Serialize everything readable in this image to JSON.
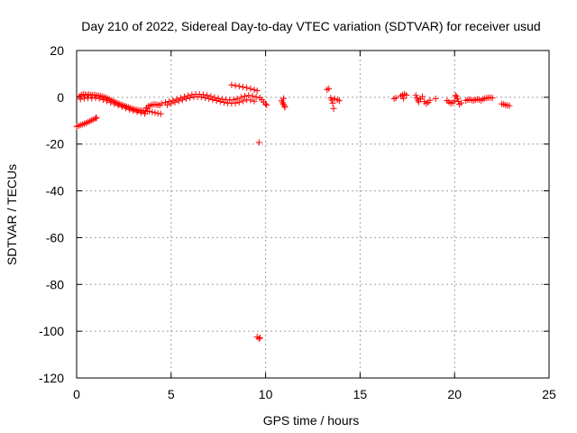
{
  "chart_data": {
    "type": "scatter",
    "title": "Day 210 of 2022, Sidereal Day-to-day VTEC variation (SDTVAR) for receiver usud",
    "xlabel": "GPS time / hours",
    "ylabel": "SDTVAR / TECUs",
    "xlim": [
      0,
      25
    ],
    "ylim": [
      -120,
      20
    ],
    "xticks": [
      0,
      5,
      10,
      15,
      20,
      25
    ],
    "yticks": [
      20,
      0,
      -20,
      -40,
      -60,
      -80,
      -100,
      -120
    ],
    "xtick_labels": [
      "0",
      "5",
      "10",
      "15",
      "20",
      "25"
    ],
    "ytick_labels": [
      "20",
      "0",
      "-20",
      "-40",
      "-60",
      "-80",
      "-100",
      "-120"
    ],
    "grid": true,
    "marker": "+",
    "color": "#ff0000",
    "series": [
      {
        "name": "SDTVAR",
        "points": [
          [
            0.0,
            -12.5
          ],
          [
            0.1,
            -12.2
          ],
          [
            0.2,
            -11.9
          ],
          [
            0.3,
            -11.6
          ],
          [
            0.4,
            -11.3
          ],
          [
            0.5,
            -11.0
          ],
          [
            0.6,
            -10.6
          ],
          [
            0.7,
            -10.2
          ],
          [
            0.8,
            -9.8
          ],
          [
            0.9,
            -9.4
          ],
          [
            1.0,
            -9.0
          ],
          [
            1.05,
            -8.7
          ],
          [
            0.15,
            0.5
          ],
          [
            0.25,
            1.0
          ],
          [
            0.35,
            1.3
          ],
          [
            0.45,
            1.2
          ],
          [
            0.55,
            1.0
          ],
          [
            0.65,
            1.2
          ],
          [
            0.75,
            1.0
          ],
          [
            0.85,
            0.9
          ],
          [
            0.95,
            1.0
          ],
          [
            1.05,
            0.8
          ],
          [
            1.15,
            0.7
          ],
          [
            1.25,
            0.6
          ],
          [
            1.35,
            0.4
          ],
          [
            1.45,
            0.1
          ],
          [
            1.55,
            -0.2
          ],
          [
            1.65,
            -0.5
          ],
          [
            1.75,
            -0.9
          ],
          [
            1.85,
            -1.3
          ],
          [
            1.95,
            -1.7
          ],
          [
            2.05,
            -2.1
          ],
          [
            2.15,
            -2.5
          ],
          [
            2.25,
            -2.8
          ],
          [
            2.35,
            -3.1
          ],
          [
            2.45,
            -3.4
          ],
          [
            2.55,
            -3.7
          ],
          [
            2.65,
            -4.0
          ],
          [
            2.75,
            -4.3
          ],
          [
            2.85,
            -4.6
          ],
          [
            2.95,
            -4.9
          ],
          [
            3.05,
            -5.1
          ],
          [
            3.15,
            -5.3
          ],
          [
            3.25,
            -5.5
          ],
          [
            3.35,
            -5.6
          ],
          [
            3.45,
            -5.7
          ],
          [
            3.55,
            -5.8
          ],
          [
            3.65,
            -5.9
          ],
          [
            3.75,
            -6.0
          ],
          [
            0.2,
            -0.8
          ],
          [
            0.4,
            -0.5
          ],
          [
            0.6,
            -0.3
          ],
          [
            0.8,
            -0.4
          ],
          [
            1.0,
            -0.2
          ],
          [
            1.2,
            -0.5
          ],
          [
            1.4,
            -1.0
          ],
          [
            1.6,
            -1.6
          ],
          [
            1.8,
            -2.2
          ],
          [
            2.0,
            -2.8
          ],
          [
            2.2,
            -3.4
          ],
          [
            2.4,
            -4.0
          ],
          [
            2.6,
            -4.6
          ],
          [
            2.8,
            -5.2
          ],
          [
            3.0,
            -5.7
          ],
          [
            3.2,
            -6.2
          ],
          [
            3.4,
            -6.6
          ],
          [
            3.6,
            -7.0
          ],
          [
            3.7,
            -4.5
          ],
          [
            3.8,
            -3.8
          ],
          [
            3.9,
            -3.5
          ],
          [
            4.0,
            -3.2
          ],
          [
            4.1,
            -3.0
          ],
          [
            4.2,
            -3.1
          ],
          [
            4.3,
            -3.3
          ],
          [
            4.4,
            -3.4
          ],
          [
            3.85,
            -6.0
          ],
          [
            4.0,
            -6.3
          ],
          [
            4.15,
            -6.6
          ],
          [
            4.3,
            -6.9
          ],
          [
            4.45,
            -7.1
          ],
          [
            4.5,
            -2.7
          ],
          [
            4.7,
            -2.2
          ],
          [
            4.9,
            -1.8
          ],
          [
            5.1,
            -1.3
          ],
          [
            5.3,
            -0.8
          ],
          [
            5.5,
            -0.3
          ],
          [
            5.7,
            0.2
          ],
          [
            5.9,
            0.7
          ],
          [
            6.1,
            1.1
          ],
          [
            6.3,
            1.3
          ],
          [
            6.5,
            1.3
          ],
          [
            6.7,
            1.1
          ],
          [
            6.9,
            0.8
          ],
          [
            7.1,
            0.4
          ],
          [
            7.3,
            -0.1
          ],
          [
            7.5,
            -0.5
          ],
          [
            7.7,
            -0.8
          ],
          [
            7.9,
            -1.0
          ],
          [
            8.1,
            -1.1
          ],
          [
            8.3,
            -1.0
          ],
          [
            8.5,
            -0.6
          ],
          [
            8.7,
            0.0
          ],
          [
            8.9,
            0.5
          ],
          [
            9.1,
            0.8
          ],
          [
            9.3,
            0.6
          ],
          [
            9.5,
            0.1
          ],
          [
            4.8,
            -3.3
          ],
          [
            5.0,
            -2.7
          ],
          [
            5.2,
            -2.1
          ],
          [
            5.4,
            -1.6
          ],
          [
            5.6,
            -1.1
          ],
          [
            5.8,
            -0.6
          ],
          [
            6.0,
            -0.2
          ],
          [
            6.2,
            0.1
          ],
          [
            6.4,
            0.2
          ],
          [
            6.6,
            0.1
          ],
          [
            6.8,
            -0.2
          ],
          [
            7.0,
            -0.6
          ],
          [
            7.2,
            -1.0
          ],
          [
            7.4,
            -1.4
          ],
          [
            7.6,
            -1.8
          ],
          [
            7.8,
            -2.2
          ],
          [
            8.0,
            -2.5
          ],
          [
            8.2,
            -2.6
          ],
          [
            8.4,
            -2.5
          ],
          [
            8.6,
            -2.1
          ],
          [
            8.8,
            -1.6
          ],
          [
            9.0,
            -1.1
          ],
          [
            9.2,
            -1.2
          ],
          [
            9.4,
            -1.7
          ],
          [
            8.2,
            5.3
          ],
          [
            8.4,
            5.0
          ],
          [
            8.6,
            4.7
          ],
          [
            8.8,
            4.4
          ],
          [
            9.0,
            4.1
          ],
          [
            9.2,
            3.7
          ],
          [
            9.4,
            3.2
          ],
          [
            9.55,
            2.8
          ],
          [
            9.7,
            -0.2
          ],
          [
            9.8,
            -1.0
          ],
          [
            9.9,
            -2.0
          ],
          [
            10.0,
            -2.8
          ],
          [
            10.05,
            -3.3
          ],
          [
            9.65,
            -19.3
          ],
          [
            9.55,
            -102.5
          ],
          [
            9.65,
            -103.2
          ],
          [
            9.7,
            -102.8
          ],
          [
            10.85,
            -1.5
          ],
          [
            10.9,
            -2.3
          ],
          [
            10.95,
            -3.0
          ],
          [
            11.0,
            -3.7
          ],
          [
            11.02,
            -4.3
          ],
          [
            10.95,
            -0.5
          ],
          [
            13.25,
            3.3
          ],
          [
            13.35,
            3.7
          ],
          [
            13.45,
            -0.3
          ],
          [
            13.5,
            -1.2
          ],
          [
            13.55,
            -2.5
          ],
          [
            13.6,
            -4.8
          ],
          [
            13.65,
            -0.6
          ],
          [
            13.8,
            -1.0
          ],
          [
            13.9,
            -1.5
          ],
          [
            16.8,
            -0.6
          ],
          [
            16.9,
            -0.3
          ],
          [
            17.15,
            0.5
          ],
          [
            17.25,
            1.0
          ],
          [
            17.35,
            1.4
          ],
          [
            17.45,
            0.9
          ],
          [
            17.3,
            -0.5
          ],
          [
            17.95,
            0.8
          ],
          [
            18.0,
            -0.3
          ],
          [
            18.05,
            -1.2
          ],
          [
            18.1,
            -2.0
          ],
          [
            18.2,
            -0.7
          ],
          [
            18.3,
            0.3
          ],
          [
            18.4,
            -1.8
          ],
          [
            18.5,
            -2.7
          ],
          [
            18.6,
            -2.2
          ],
          [
            18.7,
            -1.3
          ],
          [
            19.0,
            -0.6
          ],
          [
            19.6,
            -1.4
          ],
          [
            19.7,
            -2.0
          ],
          [
            19.8,
            -2.6
          ],
          [
            19.9,
            -2.3
          ],
          [
            20.0,
            -1.5
          ],
          [
            20.05,
            0.8
          ],
          [
            20.1,
            0.3
          ],
          [
            20.15,
            -0.6
          ],
          [
            20.2,
            -1.8
          ],
          [
            20.25,
            -3.0
          ],
          [
            20.35,
            -2.4
          ],
          [
            20.6,
            -1.4
          ],
          [
            20.7,
            -1.0
          ],
          [
            20.8,
            -0.9
          ],
          [
            20.9,
            -1.2
          ],
          [
            21.0,
            -1.4
          ],
          [
            21.1,
            -1.1
          ],
          [
            21.2,
            -0.8
          ],
          [
            21.3,
            -1.0
          ],
          [
            21.4,
            -1.3
          ],
          [
            21.5,
            -0.8
          ],
          [
            21.6,
            -0.5
          ],
          [
            21.7,
            -0.3
          ],
          [
            21.8,
            -0.2
          ],
          [
            21.9,
            -0.1
          ],
          [
            22.0,
            -0.3
          ],
          [
            22.5,
            -2.8
          ],
          [
            22.6,
            -3.0
          ],
          [
            22.7,
            -3.3
          ],
          [
            22.8,
            -3.5
          ],
          [
            22.9,
            -3.6
          ]
        ]
      }
    ]
  }
}
